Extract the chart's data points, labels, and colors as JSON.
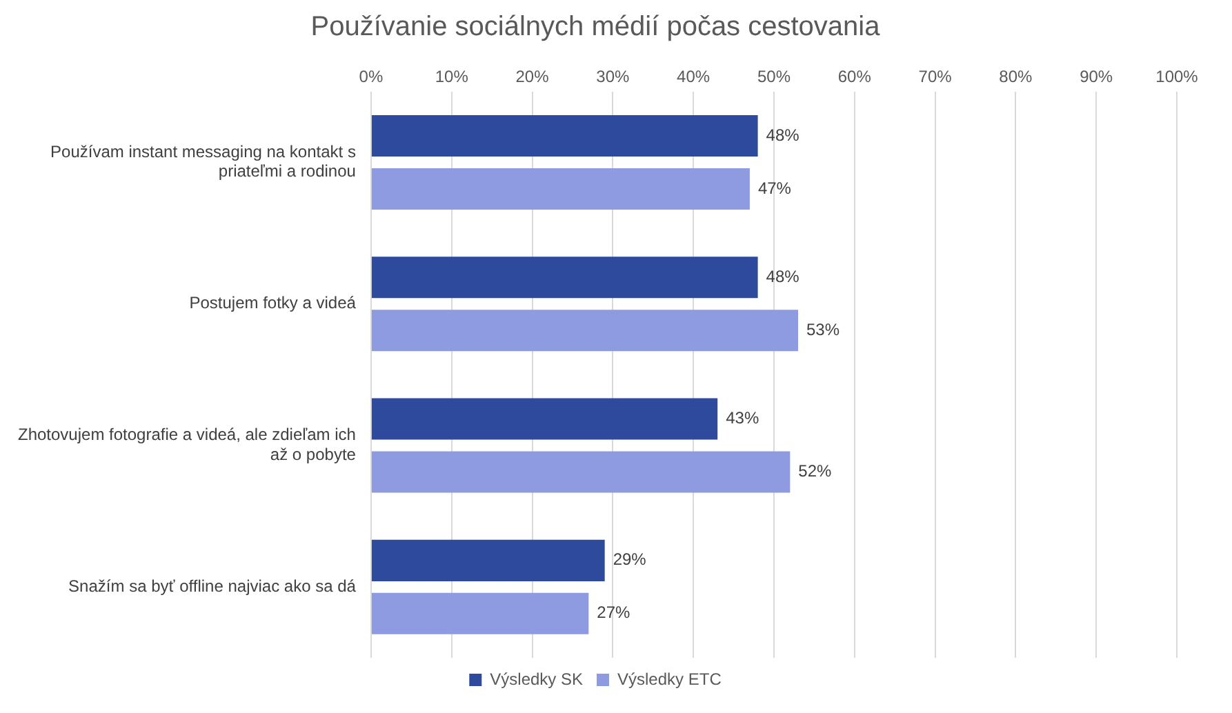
{
  "chart_data": {
    "type": "bar",
    "orientation": "horizontal",
    "title": "Používanie sociálnych médií počas cestovania",
    "categories": [
      "Používam instant messaging na kontakt s priateľmi a rodinou",
      "Postujem fotky a videá",
      "Zhotovujem fotografie a videá, ale zdieľam ich až o pobyte",
      "Snažím sa byť offline najviac ako sa dá"
    ],
    "series": [
      {
        "name": "Výsledky SK",
        "color": "#2e4a9c",
        "values": [
          48,
          48,
          43,
          29
        ],
        "value_labels": [
          "48%",
          "48%",
          "43%",
          "29%"
        ]
      },
      {
        "name": "Výsledky ETC",
        "color": "#8e9be0",
        "values": [
          47,
          53,
          52,
          27
        ],
        "value_labels": [
          "47%",
          "53%",
          "52%",
          "27%"
        ]
      }
    ],
    "xlim": [
      0,
      100
    ],
    "xticks": [
      {
        "value": 0,
        "label": "0%"
      },
      {
        "value": 10,
        "label": "10%"
      },
      {
        "value": 20,
        "label": "20%"
      },
      {
        "value": 30,
        "label": "30%"
      },
      {
        "value": 40,
        "label": "40%"
      },
      {
        "value": 50,
        "label": "50%"
      },
      {
        "value": 60,
        "label": "60%"
      },
      {
        "value": 70,
        "label": "70%"
      },
      {
        "value": 80,
        "label": "80%"
      },
      {
        "value": 90,
        "label": "90%"
      },
      {
        "value": 100,
        "label": "100%"
      }
    ],
    "grid": "x",
    "legend": "bottom"
  }
}
